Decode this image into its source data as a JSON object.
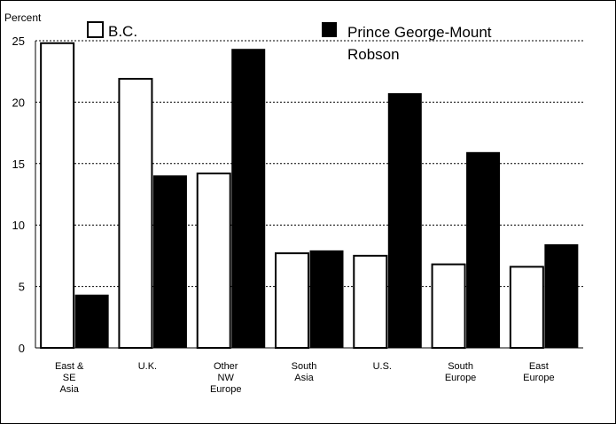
{
  "chart_data": {
    "type": "bar",
    "ylabel": "Percent",
    "xlabel": "",
    "title": "",
    "ylim": [
      0,
      25
    ],
    "yticks": [
      0,
      5,
      10,
      15,
      20,
      25
    ],
    "grid": true,
    "legend_position": "top",
    "categories": [
      [
        "East &",
        "SE",
        "Asia"
      ],
      [
        "U.K."
      ],
      [
        "Other",
        "NW",
        "Europe"
      ],
      [
        "South",
        "Asia"
      ],
      [
        "U.S."
      ],
      [
        "South",
        "Europe"
      ],
      [
        "East",
        "Europe"
      ]
    ],
    "series": [
      {
        "name": "B.C.",
        "color": "#ffffff",
        "values": [
          24.8,
          21.9,
          14.2,
          7.7,
          7.5,
          6.8,
          6.6
        ]
      },
      {
        "name": "Prince George-Mount Robson",
        "name_lines": [
          "Prince George-Mount",
          "Robson"
        ],
        "color": "#000000",
        "values": [
          4.3,
          14.0,
          24.3,
          7.9,
          20.7,
          15.9,
          8.4
        ]
      }
    ]
  }
}
